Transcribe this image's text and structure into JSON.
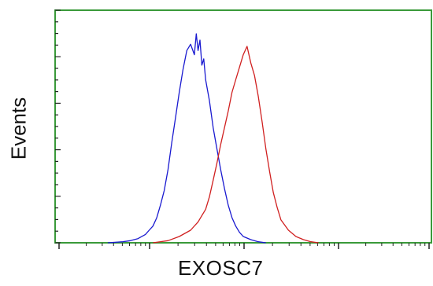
{
  "chart_data": {
    "type": "line",
    "title": "",
    "xlabel": "EXOSC7",
    "ylabel": "Events",
    "xlim": [
      0,
      100
    ],
    "ylim": [
      0,
      100
    ],
    "grid": false,
    "frame_color": "#3a9a3a",
    "series": [
      {
        "color": "#1a1ad0",
        "x": [
          14,
          18,
          20,
          22,
          24,
          25,
          26,
          27,
          28,
          29,
          30,
          31,
          32,
          33,
          34,
          35,
          36,
          37,
          37.5,
          38,
          38.5,
          39,
          39.5,
          40,
          41,
          42,
          43,
          44,
          45,
          46,
          47,
          48,
          49,
          50,
          52,
          54,
          56
        ],
        "y": [
          0,
          0.5,
          1,
          2,
          4,
          6,
          8,
          12,
          18,
          25,
          35,
          48,
          60,
          72,
          83,
          92,
          95,
          90,
          100,
          92,
          97,
          85,
          88,
          78,
          68,
          55,
          45,
          35,
          26,
          18,
          12,
          8,
          5,
          3,
          1.5,
          0.5,
          0
        ]
      },
      {
        "color": "#d02020",
        "x": [
          26,
          30,
          33,
          36,
          38,
          40,
          41,
          42,
          43,
          44,
          45,
          46,
          47,
          48,
          49,
          50,
          51,
          52,
          53,
          54,
          55,
          56,
          57,
          58,
          59,
          60,
          62,
          64,
          66,
          68,
          70
        ],
        "y": [
          0,
          1,
          3,
          6,
          10,
          16,
          22,
          30,
          38,
          47,
          55,
          63,
          72,
          78,
          84,
          90,
          94,
          86,
          80,
          70,
          58,
          45,
          34,
          24,
          17,
          11,
          6,
          3,
          1.5,
          0.5,
          0
        ]
      }
    ]
  }
}
